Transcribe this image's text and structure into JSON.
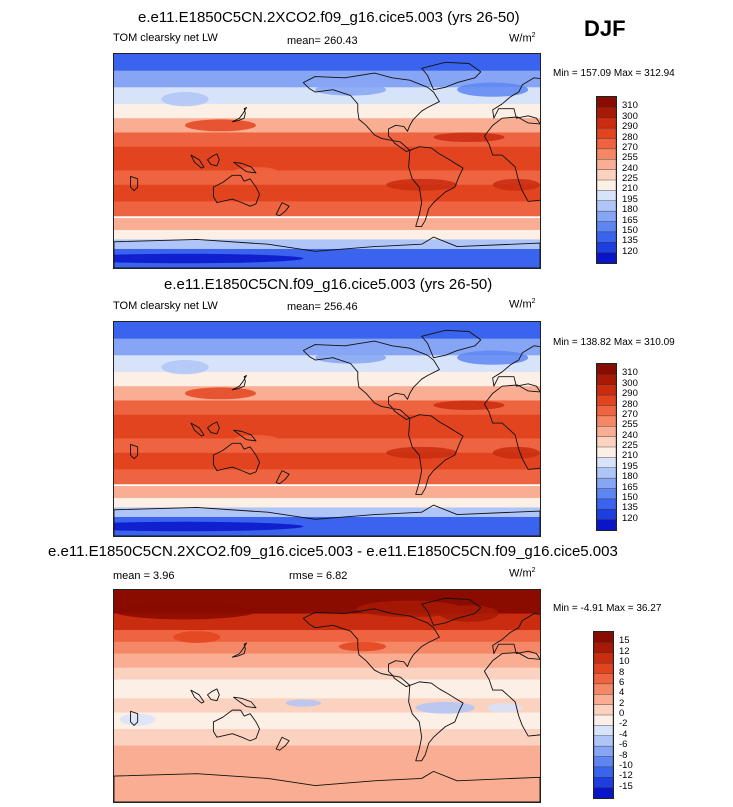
{
  "season": "DJF",
  "colors": {
    "base": [
      "#08008a",
      "#0a14c8",
      "#1e3fe0",
      "#3a63ee",
      "#5e86f2",
      "#86a6f5",
      "#afc5f7",
      "#d7e3f9",
      "#fbefe6",
      "#fbd2bf",
      "#f9ae93",
      "#f48866",
      "#ef6440",
      "#e34420",
      "#c92c0f",
      "#a81a06",
      "#8a0b00"
    ],
    "diff": [
      "#08008a",
      "#0a14c8",
      "#1e3fe0",
      "#3a63ee",
      "#5e86f2",
      "#86a6f5",
      "#afc5f7",
      "#d7e3f9",
      "#fbefe6",
      "#fbd2bf",
      "#f9ae93",
      "#f48866",
      "#ef6440",
      "#e34420",
      "#c92c0f",
      "#a81a06",
      "#8a0b00"
    ]
  },
  "chart_data": [
    {
      "type": "heatmap",
      "title": "e.e11.E1850C5CN.2XCO2.f09_g16.cice5.003 (yrs 26-50)",
      "left_label": "TOM clearsky net LW",
      "mean_text": "mean= 260.43",
      "units_base": "W/m",
      "units_exp": "2",
      "minmax": "Min = 157.09 Max = 312.94",
      "levels": [
        "310",
        "300",
        "290",
        "280",
        "270",
        "255",
        "240",
        "225",
        "210",
        "195",
        "180",
        "165",
        "150",
        "135",
        "120"
      ]
    },
    {
      "type": "heatmap",
      "title": "e.e11.E1850C5CN.f09_g16.cice5.003 (yrs 26-50)",
      "left_label": "TOM clearsky net LW",
      "mean_text": "mean= 256.46",
      "units_base": "W/m",
      "units_exp": "2",
      "minmax": "Min = 138.82 Max = 310.09",
      "levels": [
        "310",
        "300",
        "290",
        "280",
        "270",
        "255",
        "240",
        "225",
        "210",
        "195",
        "180",
        "165",
        "150",
        "135",
        "120"
      ]
    },
    {
      "type": "heatmap",
      "title": "e.e11.E1850C5CN.2XCO2.f09_g16.cice5.003 - e.e11.E1850C5CN.f09_g16.cice5.003",
      "left_label": "mean =   3.96",
      "mean_text": "rmse =   6.82",
      "units_base": "W/m",
      "units_exp": "2",
      "minmax": "Min = -4.91 Max = 36.27",
      "levels": [
        "15",
        "12",
        "10",
        "8",
        "6",
        "4",
        "2",
        "0",
        "-2",
        "-4",
        "-6",
        "-8",
        "-10",
        "-12",
        "-15"
      ]
    }
  ]
}
